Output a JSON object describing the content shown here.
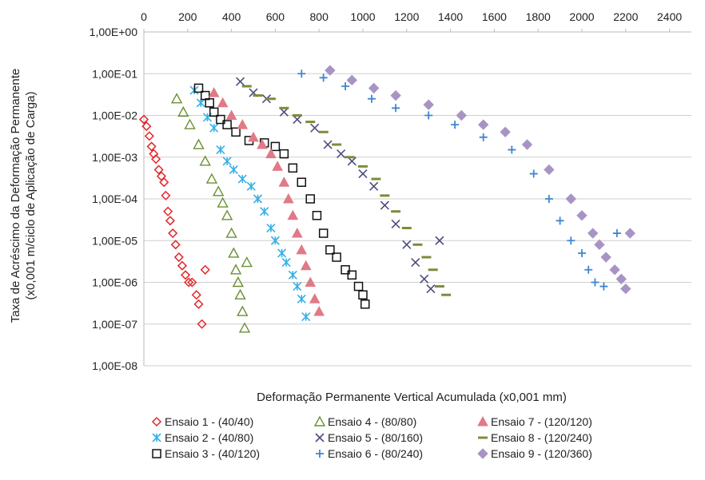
{
  "chart_data": {
    "type": "scatter",
    "title": "",
    "xlabel": "Deformação Permanente Vertical Acumulada (x0,001 mm)",
    "ylabel_lines": [
      "Taxa de Acréscimo da Deformação Permanente",
      "(x0,001 m/ciclo de Aplicação de Carga)"
    ],
    "x_ticks": [
      "0",
      "200",
      "400",
      "600",
      "800",
      "1000",
      "1200",
      "1400",
      "1600",
      "1800",
      "2000",
      "2200",
      "2400"
    ],
    "y_ticks": [
      "1,00E+00",
      "1,00E-01",
      "1,00E-02",
      "1,00E-03",
      "1,00E-04",
      "1,00E-05",
      "1,00E-06",
      "1,00E-07",
      "1,00E-08"
    ],
    "xlim": [
      0,
      2500
    ],
    "ylim": [
      1e-08,
      1
    ],
    "y_scale": "log",
    "x_axis_position": "top",
    "grid": "horizontal",
    "legend_position": "bottom",
    "series": [
      {
        "name": "Ensaio 1 - (40/40)",
        "marker": "diamond-open",
        "color": "#e3262b",
        "x": [
          0,
          12,
          25,
          35,
          45,
          55,
          68,
          80,
          92,
          100,
          110,
          120,
          132,
          145,
          160,
          175,
          190,
          205,
          220,
          240,
          250,
          265,
          280
        ],
        "y": [
          0.008,
          0.0055,
          0.0032,
          0.0018,
          0.0012,
          0.0009,
          0.0005,
          0.00035,
          0.00025,
          0.00012,
          5e-05,
          3e-05,
          1.5e-05,
          8e-06,
          4e-06,
          2.5e-06,
          1.5e-06,
          1e-06,
          1e-06,
          5e-07,
          3e-07,
          1e-07,
          2e-06
        ]
      },
      {
        "name": "Ensaio 2 - (40/80)",
        "marker": "asterisk",
        "color": "#35b0e6",
        "x": [
          230,
          260,
          290,
          320,
          350,
          380,
          410,
          450,
          490,
          520,
          550,
          580,
          600,
          630,
          650,
          680,
          700,
          720,
          740
        ],
        "y": [
          0.04,
          0.02,
          0.009,
          0.005,
          0.0015,
          0.0008,
          0.0005,
          0.0003,
          0.0002,
          0.0001,
          5e-05,
          2e-05,
          1e-05,
          5e-06,
          3e-06,
          1.5e-06,
          8e-07,
          4e-07,
          1.5e-07
        ]
      },
      {
        "name": "Ensaio 3 - (40/120)",
        "marker": "square-open",
        "color": "#111111",
        "x": [
          250,
          280,
          300,
          320,
          350,
          380,
          420,
          480,
          550,
          600,
          640,
          680,
          720,
          760,
          790,
          820,
          850,
          880,
          920,
          950,
          980,
          1000,
          1010
        ],
        "y": [
          0.045,
          0.03,
          0.02,
          0.012,
          0.008,
          0.006,
          0.004,
          0.0025,
          0.0022,
          0.0018,
          0.0012,
          0.00055,
          0.00025,
          0.0001,
          4e-05,
          1.5e-05,
          6e-06,
          4e-06,
          2e-06,
          1.5e-06,
          8e-07,
          5e-07,
          3e-07
        ]
      },
      {
        "name": "Ensaio 4 - (80/80)",
        "marker": "triangle-open",
        "color": "#6b8f34",
        "x": [
          150,
          180,
          210,
          250,
          280,
          310,
          340,
          360,
          380,
          400,
          410,
          420,
          430,
          440,
          450,
          460,
          470
        ],
        "y": [
          0.025,
          0.012,
          0.006,
          0.002,
          0.0008,
          0.0003,
          0.00015,
          8e-05,
          4e-05,
          1.5e-05,
          5e-06,
          2e-06,
          1e-06,
          5e-07,
          2e-07,
          8e-08,
          3e-06
        ]
      },
      {
        "name": "Ensaio 5 - (80/160)",
        "marker": "x",
        "color": "#4c4e7f",
        "x": [
          440,
          500,
          560,
          640,
          700,
          780,
          840,
          900,
          950,
          1000,
          1050,
          1100,
          1150,
          1200,
          1240,
          1280,
          1310,
          1350
        ],
        "y": [
          0.065,
          0.035,
          0.025,
          0.012,
          0.008,
          0.005,
          0.002,
          0.0012,
          0.0008,
          0.0004,
          0.0002,
          7e-05,
          2.5e-05,
          8e-06,
          3e-06,
          1.2e-06,
          7e-07,
          1e-05
        ]
      },
      {
        "name": "Ensaio 6 - (80/240)",
        "marker": "plus",
        "color": "#3f86d0",
        "x": [
          720,
          820,
          920,
          1040,
          1150,
          1300,
          1420,
          1550,
          1680,
          1780,
          1850,
          1900,
          1950,
          2000,
          2030,
          2060,
          2100,
          2160
        ],
        "y": [
          0.1,
          0.08,
          0.05,
          0.025,
          0.015,
          0.01,
          0.006,
          0.003,
          0.0015,
          0.0004,
          0.0001,
          3e-05,
          1e-05,
          5e-06,
          2e-06,
          1e-06,
          8e-07,
          1.5e-05
        ]
      },
      {
        "name": "Ensaio 7 - (120/120)",
        "marker": "triangle-filled",
        "color": "#e07a86",
        "x": [
          320,
          360,
          400,
          450,
          500,
          540,
          580,
          610,
          640,
          660,
          680,
          700,
          720,
          740,
          760,
          780,
          800
        ],
        "y": [
          0.035,
          0.02,
          0.01,
          0.006,
          0.003,
          0.002,
          0.0012,
          0.0006,
          0.00025,
          0.0001,
          4e-05,
          1.5e-05,
          6e-06,
          2.5e-06,
          1e-06,
          4e-07,
          2e-07
        ]
      },
      {
        "name": "Ensaio 8 - (120/240)",
        "marker": "dash",
        "color": "#7d8b3a",
        "x": [
          470,
          520,
          580,
          640,
          700,
          760,
          820,
          880,
          940,
          1000,
          1060,
          1100,
          1150,
          1200,
          1250,
          1290,
          1320,
          1350,
          1380
        ],
        "y": [
          0.05,
          0.03,
          0.025,
          0.015,
          0.01,
          0.007,
          0.004,
          0.002,
          0.001,
          0.0006,
          0.0003,
          0.00012,
          5e-05,
          2e-05,
          8e-06,
          4e-06,
          2e-06,
          8e-07,
          5e-07
        ]
      },
      {
        "name": "Ensaio 9 - (120/360)",
        "marker": "diamond-filled",
        "color": "#a894c4",
        "x": [
          850,
          950,
          1050,
          1150,
          1300,
          1450,
          1550,
          1650,
          1750,
          1850,
          1950,
          2000,
          2050,
          2080,
          2110,
          2150,
          2180,
          2200,
          2220
        ],
        "y": [
          0.12,
          0.07,
          0.045,
          0.03,
          0.018,
          0.01,
          0.006,
          0.004,
          0.002,
          0.0005,
          0.0001,
          4e-05,
          1.5e-05,
          8e-06,
          4e-06,
          2e-06,
          1.2e-06,
          7e-07,
          1.5e-05
        ]
      }
    ]
  }
}
